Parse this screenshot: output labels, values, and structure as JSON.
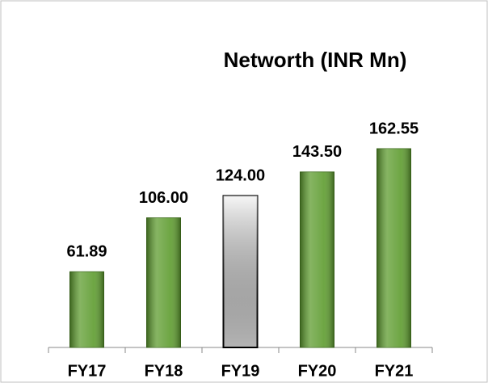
{
  "chart_data": {
    "type": "bar",
    "title": "Networth (INR Mn)",
    "categories": [
      "FY17",
      "FY18",
      "FY19",
      "FY20",
      "FY21"
    ],
    "values": [
      61.89,
      106,
      124,
      143.5,
      162.55
    ],
    "value_labels": [
      "61.89",
      "106.00",
      "124.00",
      "143.50",
      "162.55"
    ],
    "colors": [
      "#5e9c2f",
      "#5e9c2f",
      "#d4d4d4",
      "#5e9c2f",
      "#5e9c2f"
    ]
  }
}
